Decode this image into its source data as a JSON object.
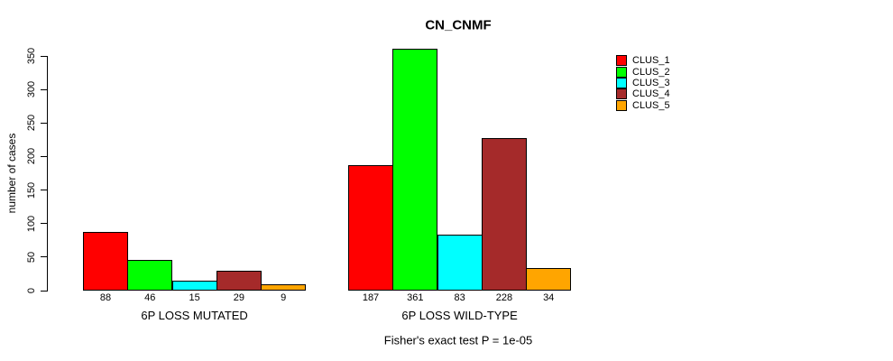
{
  "chart_data": {
    "type": "bar",
    "title": "CN_CNMF",
    "ylabel": "number of cases",
    "annotation": "Fisher's exact test P = 1e-05",
    "ylim": [
      0,
      350
    ],
    "yticks": [
      0,
      50,
      100,
      150,
      200,
      250,
      300,
      350
    ],
    "grid": false,
    "legend_position": "right",
    "categories": [
      "6P LOSS MUTATED",
      "6P LOSS WILD-TYPE"
    ],
    "series": [
      {
        "name": "CLUS_1",
        "color": "#FF0000",
        "values": [
          88,
          187
        ]
      },
      {
        "name": "CLUS_2",
        "color": "#00FF00",
        "values": [
          46,
          361
        ]
      },
      {
        "name": "CLUS_3",
        "color": "#00FFFF",
        "values": [
          15,
          83
        ]
      },
      {
        "name": "CLUS_4",
        "color": "#A52A2A",
        "values": [
          29,
          228
        ]
      },
      {
        "name": "CLUS_5",
        "color": "#FFA500",
        "values": [
          9,
          34
        ]
      }
    ],
    "value_labels": {
      "6P LOSS MUTATED": [
        88,
        46,
        15,
        29,
        9
      ],
      "6P LOSS WILD-TYPE": [
        187,
        361,
        83,
        228,
        34
      ]
    },
    "text_color": "#000000",
    "background_color": "#FFFFFF"
  }
}
